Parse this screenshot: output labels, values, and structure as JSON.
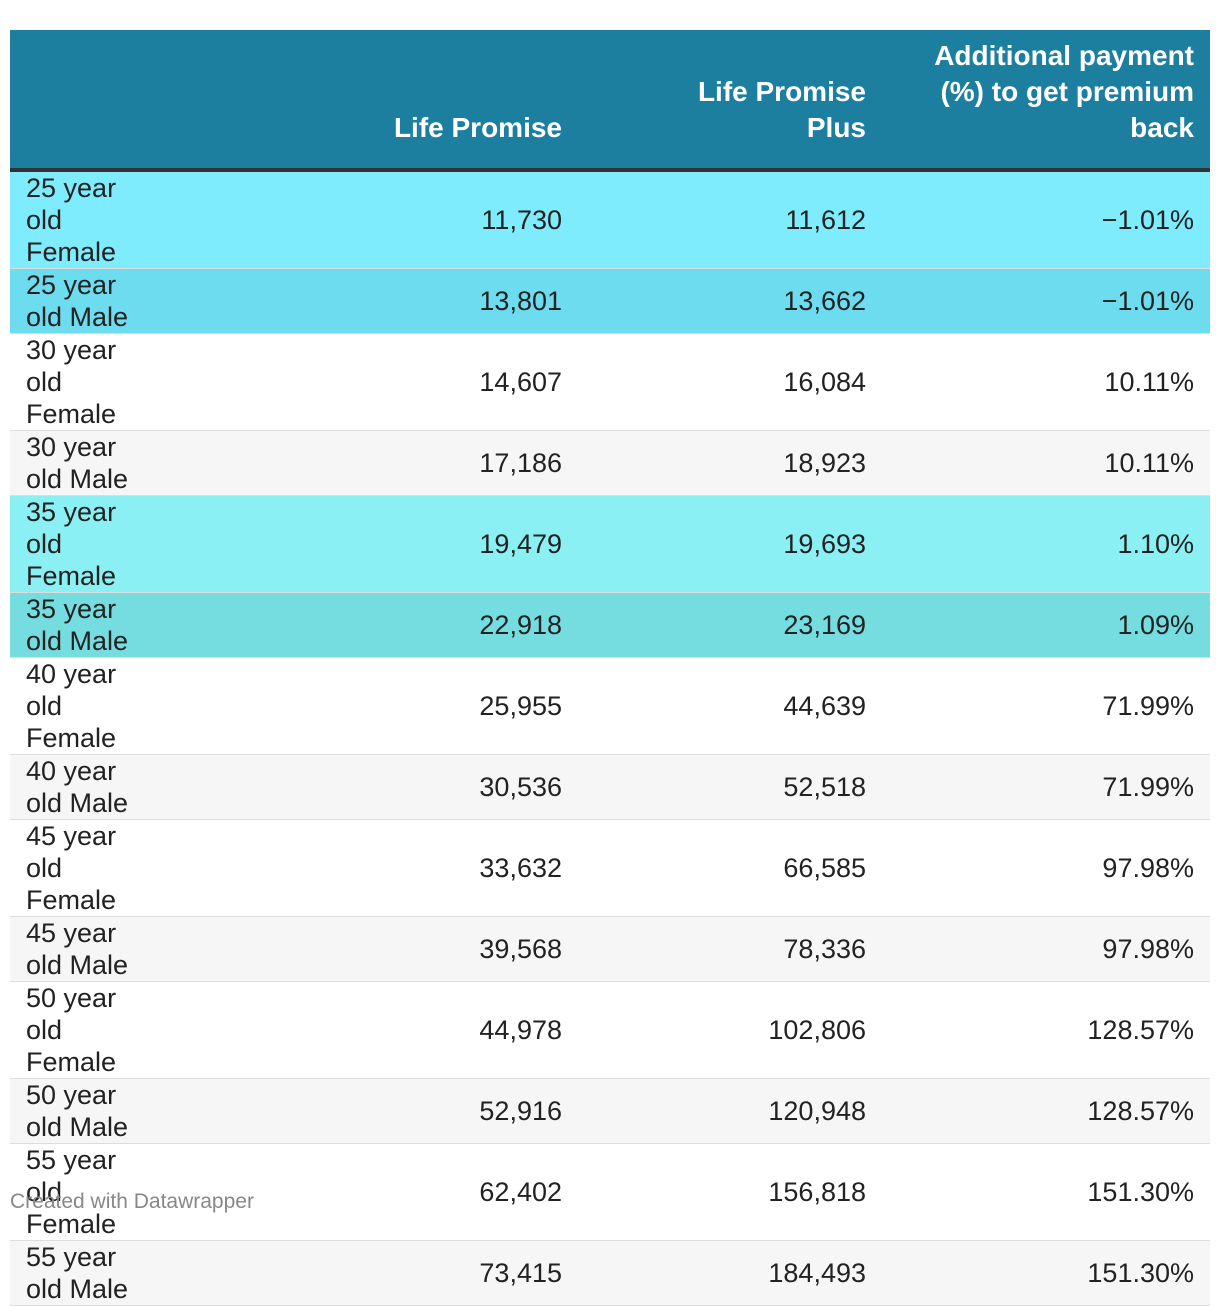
{
  "chart_data": {
    "type": "table",
    "columns": [
      "",
      "Life Promise",
      "Life Promise Plus",
      "Additional payment (%) to get premium back"
    ],
    "rows": [
      {
        "label": "25 year old Female",
        "life_promise": "11,730",
        "life_promise_plus": "11,612",
        "additional": "−1.01%",
        "highlight": "#7eecfc"
      },
      {
        "label": "25 year old Male",
        "life_promise": "13,801",
        "life_promise_plus": "13,662",
        "additional": "−1.01%",
        "highlight": "#6ddcef"
      },
      {
        "label": "30 year old Female",
        "life_promise": "14,607",
        "life_promise_plus": "16,084",
        "additional": "10.11%",
        "highlight": ""
      },
      {
        "label": "30 year old Male",
        "life_promise": "17,186",
        "life_promise_plus": "18,923",
        "additional": "10.11%",
        "highlight": ""
      },
      {
        "label": "35 year old Female",
        "life_promise": "19,479",
        "life_promise_plus": "19,693",
        "additional": "1.10%",
        "highlight": "#8af0f4"
      },
      {
        "label": "35 year old Male",
        "life_promise": "22,918",
        "life_promise_plus": "23,169",
        "additional": "1.09%",
        "highlight": "#75dde0"
      },
      {
        "label": "40 year old Female",
        "life_promise": "25,955",
        "life_promise_plus": "44,639",
        "additional": "71.99%",
        "highlight": ""
      },
      {
        "label": "40 year old Male",
        "life_promise": "30,536",
        "life_promise_plus": "52,518",
        "additional": "71.99%",
        "highlight": ""
      },
      {
        "label": "45 year old Female",
        "life_promise": "33,632",
        "life_promise_plus": "66,585",
        "additional": "97.98%",
        "highlight": ""
      },
      {
        "label": "45 year old Male",
        "life_promise": "39,568",
        "life_promise_plus": "78,336",
        "additional": "97.98%",
        "highlight": ""
      },
      {
        "label": "50 year old Female",
        "life_promise": "44,978",
        "life_promise_plus": "102,806",
        "additional": "128.57%",
        "highlight": ""
      },
      {
        "label": "50 year old Male",
        "life_promise": "52,916",
        "life_promise_plus": "120,948",
        "additional": "128.57%",
        "highlight": ""
      },
      {
        "label": "55 year old Female",
        "life_promise": "62,402",
        "life_promise_plus": "156,818",
        "additional": "151.30%",
        "highlight": ""
      },
      {
        "label": "55 year old Male",
        "life_promise": "73,415",
        "life_promise_plus": "184,493",
        "additional": "151.30%",
        "highlight": ""
      }
    ],
    "header_color": "#1d7fa0"
  },
  "footer": {
    "credit": "Created with Datawrapper"
  }
}
